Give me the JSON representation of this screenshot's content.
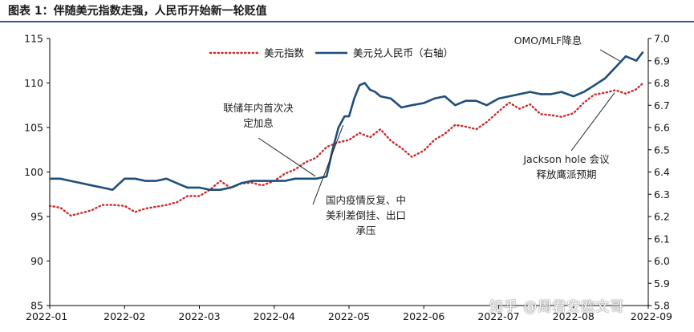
{
  "title": "图表 1：伴随美元指数走强，人民币开始新一轮贬值",
  "watermark": "知乎 @周君安欧文哥",
  "colors": {
    "usd_index": "#cc2a2a",
    "usdcny": "#1f4e79",
    "axis": "#000000",
    "annotation_line": "#222222"
  },
  "chart_data": {
    "type": "line",
    "title": "图表 1：伴随美元指数走强，人民币开始新一轮贬值",
    "x_ticks": [
      "2022-01",
      "2022-02",
      "2022-03",
      "2022-04",
      "2022-05",
      "2022-06",
      "2022-07",
      "2022-08",
      "2022-09"
    ],
    "x_range": [
      0,
      8
    ],
    "y_left": {
      "ticks": [
        "115",
        "110",
        "105",
        "100",
        "95",
        "90",
        "85"
      ],
      "range": [
        85,
        115
      ]
    },
    "y_right": {
      "ticks": [
        "7.0",
        "6.9",
        "6.8",
        "6.7",
        "6.6",
        "6.5",
        "6.4",
        "6.3",
        "6.2",
        "6.1",
        "6.0",
        "5.9",
        "5.8"
      ],
      "range": [
        5.8,
        7.0
      ]
    },
    "grid": false,
    "legend_position": "top",
    "series": [
      {
        "name": "美元指数",
        "axis": "left",
        "style": "dotted",
        "x": [
          0.0,
          0.14,
          0.28,
          0.42,
          0.56,
          0.7,
          0.84,
          1.0,
          1.14,
          1.28,
          1.42,
          1.56,
          1.7,
          1.84,
          2.0,
          2.14,
          2.28,
          2.42,
          2.56,
          2.7,
          2.84,
          3.0,
          3.14,
          3.28,
          3.42,
          3.56,
          3.7,
          3.84,
          4.0,
          4.14,
          4.28,
          4.42,
          4.56,
          4.7,
          4.84,
          5.0,
          5.14,
          5.28,
          5.42,
          5.56,
          5.7,
          5.84,
          6.0,
          6.14,
          6.28,
          6.42,
          6.56,
          6.7,
          6.84,
          7.0,
          7.14,
          7.28,
          7.42,
          7.56,
          7.7,
          7.84,
          7.93
        ],
        "y": [
          96.2,
          96.0,
          95.1,
          95.4,
          95.7,
          96.3,
          96.3,
          96.2,
          95.5,
          95.9,
          96.1,
          96.3,
          96.6,
          97.3,
          97.3,
          98.0,
          99.0,
          98.2,
          98.7,
          98.8,
          98.5,
          99.0,
          99.8,
          100.3,
          101.1,
          101.6,
          102.8,
          103.3,
          103.6,
          104.4,
          103.9,
          104.8,
          103.5,
          102.7,
          101.7,
          102.4,
          103.6,
          104.3,
          105.3,
          105.1,
          104.8,
          105.6,
          106.8,
          107.8,
          107.1,
          107.6,
          106.5,
          106.4,
          106.2,
          106.6,
          107.8,
          108.7,
          108.9,
          109.2,
          108.8,
          109.3,
          110.0
        ]
      },
      {
        "name": "美元兑人民币（右轴）",
        "axis": "right",
        "style": "solid",
        "x": [
          0.0,
          0.14,
          0.28,
          0.42,
          0.56,
          0.7,
          0.84,
          1.0,
          1.14,
          1.28,
          1.42,
          1.56,
          1.7,
          1.84,
          2.0,
          2.14,
          2.28,
          2.42,
          2.56,
          2.7,
          2.84,
          3.0,
          3.14,
          3.28,
          3.42,
          3.56,
          3.7,
          3.78,
          3.86,
          3.94,
          4.0,
          4.07,
          4.14,
          4.21,
          4.28,
          4.35,
          4.42,
          4.56,
          4.7,
          4.84,
          5.0,
          5.14,
          5.28,
          5.42,
          5.56,
          5.7,
          5.84,
          6.0,
          6.14,
          6.28,
          6.42,
          6.56,
          6.7,
          6.84,
          7.0,
          7.14,
          7.28,
          7.42,
          7.56,
          7.7,
          7.84,
          7.93
        ],
        "y": [
          6.37,
          6.37,
          6.36,
          6.35,
          6.34,
          6.33,
          6.32,
          6.37,
          6.37,
          6.36,
          6.36,
          6.37,
          6.35,
          6.33,
          6.33,
          6.32,
          6.32,
          6.33,
          6.35,
          6.36,
          6.36,
          6.36,
          6.36,
          6.37,
          6.37,
          6.37,
          6.38,
          6.5,
          6.6,
          6.65,
          6.65,
          6.73,
          6.79,
          6.8,
          6.77,
          6.76,
          6.74,
          6.73,
          6.69,
          6.7,
          6.71,
          6.73,
          6.74,
          6.7,
          6.72,
          6.72,
          6.7,
          6.73,
          6.74,
          6.75,
          6.76,
          6.75,
          6.75,
          6.76,
          6.74,
          6.76,
          6.79,
          6.82,
          6.87,
          6.92,
          6.9,
          6.94
        ]
      }
    ],
    "annotations": [
      {
        "lines": [
          "联储年内首次决",
          "定加息"
        ],
        "target_series": 1,
        "target_x": 3.55
      },
      {
        "lines": [
          "国内疫情反复、中",
          "美利差倒挂、出口",
          "承压"
        ],
        "target_series": 1,
        "target_x": 3.9
      },
      {
        "lines": [
          "Jackson hole 会议",
          "释放鹰派预期"
        ],
        "target_series": 0,
        "target_x": 7.55
      },
      {
        "lines": [
          "OMO/MLF降息"
        ],
        "target_series": 1,
        "target_x": 7.62
      }
    ]
  }
}
